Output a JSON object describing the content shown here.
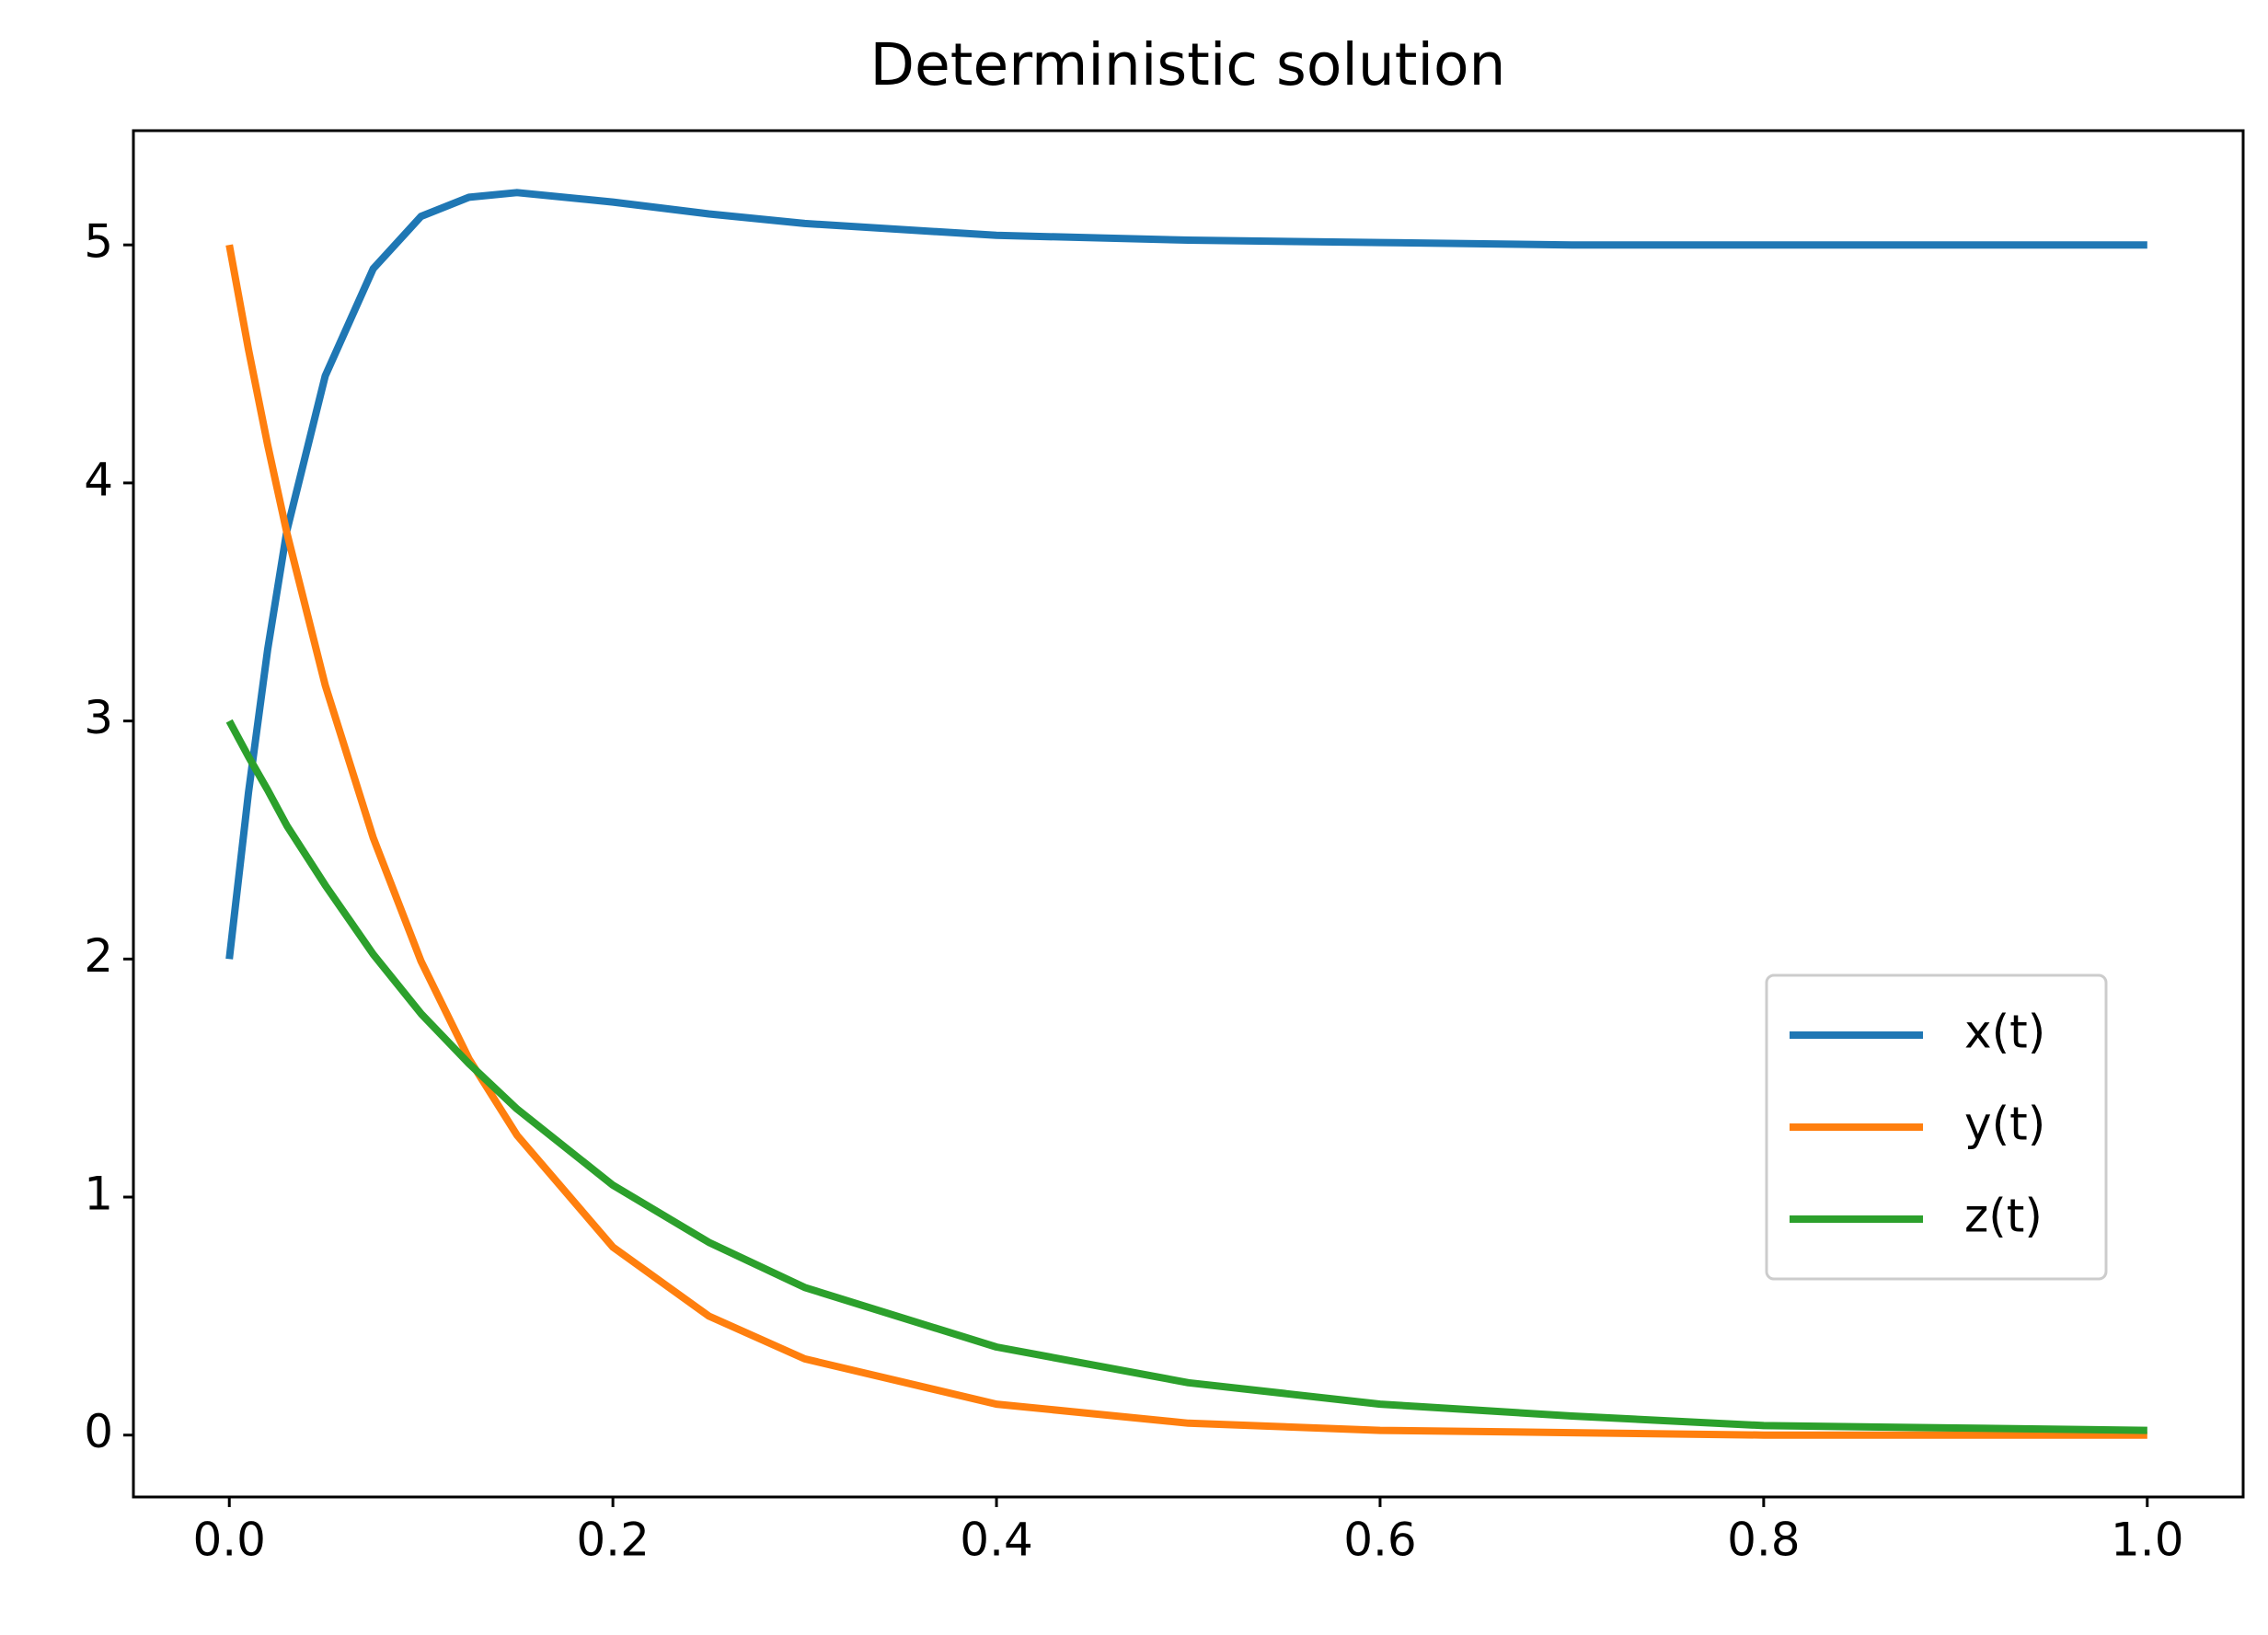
{
  "chart_data": {
    "type": "line",
    "title": "Deterministic solution",
    "x": [
      0,
      0.01,
      0.02,
      0.03,
      0.05,
      0.075,
      0.1,
      0.125,
      0.15,
      0.2,
      0.25,
      0.3,
      0.4,
      0.5,
      0.6,
      0.7,
      0.8,
      0.9,
      1.0
    ],
    "series": [
      {
        "name": "x(t)",
        "color": "#1f77b4",
        "values": [
          2,
          2.7,
          3.3,
          3.8,
          4.45,
          4.9,
          5.12,
          5.2,
          5.22,
          5.18,
          5.13,
          5.09,
          5.04,
          5.02,
          5.01,
          5.0,
          5.0,
          5.0,
          5.0
        ]
      },
      {
        "name": "y(t)",
        "color": "#ff7f0e",
        "values": [
          5,
          4.56,
          4.16,
          3.79,
          3.15,
          2.51,
          1.99,
          1.58,
          1.26,
          0.79,
          0.5,
          0.32,
          0.13,
          0.05,
          0.02,
          0.01,
          0.0,
          0.0,
          0.0
        ]
      },
      {
        "name": "z(t)",
        "color": "#2ca02c",
        "values": [
          3,
          2.85,
          2.71,
          2.56,
          2.31,
          2.02,
          1.77,
          1.56,
          1.37,
          1.05,
          0.81,
          0.62,
          0.37,
          0.22,
          0.13,
          0.08,
          0.04,
          0.03,
          0.02
        ]
      }
    ],
    "xlim": [
      -0.05,
      1.05
    ],
    "xticks": [
      {
        "value": 0,
        "label": "0.0"
      },
      {
        "value": 0.2,
        "label": "0.2"
      },
      {
        "value": 0.4,
        "label": "0.4"
      },
      {
        "value": 0.6,
        "label": "0.6"
      },
      {
        "value": 0.8,
        "label": "0.8"
      },
      {
        "value": 1,
        "label": "1.0"
      }
    ],
    "ylim": [
      -0.26,
      5.48
    ],
    "yticks": [
      0,
      1,
      2,
      3,
      4,
      5
    ],
    "grid": false,
    "legend": "lower right"
  }
}
